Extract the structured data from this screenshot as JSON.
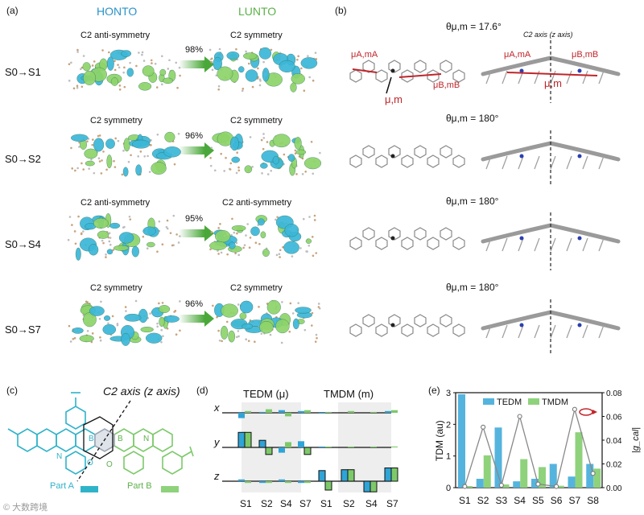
{
  "panel_a": {
    "label": "(a)",
    "header_honto": "HONTO",
    "header_lunto": "LUNTO",
    "rows": [
      {
        "transition": "S0→S1",
        "honto_sym": "C2 anti-symmetry",
        "lunto_sym": "C2 symmetry",
        "percent": "98%"
      },
      {
        "transition": "S0→S2",
        "honto_sym": "C2 symmetry",
        "lunto_sym": "C2 symmetry",
        "percent": "96%"
      },
      {
        "transition": "S0→S4",
        "honto_sym": "C2 anti-symmetry",
        "lunto_sym": "C2 anti-symmetry",
        "percent": "95%"
      },
      {
        "transition": "S0→S7",
        "honto_sym": "C2 symmetry",
        "lunto_sym": "C2 symmetry",
        "percent": "96%"
      }
    ]
  },
  "panel_b": {
    "label": "(b)",
    "axis_label": "C2 axis (z axis)",
    "thetas": [
      "θμ,m = 17.6°",
      "θμ,m = 180°",
      "θμ,m = 180°",
      "θμ,m = 180°"
    ],
    "vec_a": "μA,mA",
    "vec_b": "μB,mB",
    "vec_total": "μ,m"
  },
  "panel_c": {
    "label": "(c)",
    "axis_label": "C2 axis (z axis)",
    "part_a": "Part A",
    "part_b": "Part B",
    "atoms": [
      "N",
      "B",
      "O",
      "B",
      "O",
      "N"
    ],
    "color_a": "#2fb3c9",
    "color_b": "#7dc96a"
  },
  "panel_d": {
    "label": "(d)",
    "title_tedm": "TEDM (μ)",
    "title_tmdm": "TMDM (m)",
    "row_labels": [
      "x",
      "y",
      "z"
    ],
    "x_labels": [
      "S1",
      "S2",
      "S4",
      "S7",
      "S1",
      "S2",
      "S4",
      "S7"
    ],
    "bars": {
      "x": {
        "blue": [
          -0.3,
          0.05,
          0.15,
          0.1,
          -0.05,
          0.0,
          0.0,
          0.1
        ],
        "green": [
          0.1,
          0.2,
          -0.2,
          0.15,
          0.05,
          0.1,
          0.05,
          0.15
        ]
      },
      "y": {
        "blue": [
          0.85,
          0.4,
          -0.3,
          0.35,
          0.05,
          0.0,
          0.0,
          0.0
        ],
        "green": [
          0.85,
          -0.4,
          0.3,
          -0.4,
          0.05,
          0.05,
          0.05,
          0.05
        ]
      },
      "z": {
        "blue": [
          0.1,
          -0.1,
          0.1,
          -0.1,
          0.6,
          0.65,
          -0.6,
          0.75
        ],
        "green": [
          -0.1,
          -0.1,
          -0.1,
          -0.1,
          -0.5,
          0.65,
          -0.6,
          0.75
        ]
      }
    }
  },
  "chart_data": {
    "type": "bar",
    "title": "(e)",
    "categories": [
      "S1",
      "S2",
      "S3",
      "S4",
      "S5",
      "S6",
      "S7",
      "S8"
    ],
    "ylabel": "TDM (au)",
    "y2label": "|g_cal|",
    "ylim": [
      0,
      3
    ],
    "y2lim": [
      0,
      0.08
    ],
    "yticks": [
      "0",
      "1",
      "2",
      "3"
    ],
    "y2ticks": [
      "0.00",
      "0.02",
      "0.04",
      "0.06",
      "0.08"
    ],
    "series": [
      {
        "name": "TEDM",
        "values": [
          2.95,
          0.28,
          1.9,
          0.2,
          0.28,
          0.75,
          0.35,
          0.75
        ],
        "color": "#55b4dd"
      },
      {
        "name": "TMDM",
        "values": [
          0.05,
          1.02,
          0.1,
          0.9,
          0.65,
          0.06,
          1.75,
          0.6
        ],
        "color": "#8fd27c"
      },
      {
        "name": "|g_cal|",
        "axis": "right",
        "values": [
          0.001,
          0.051,
          0.002,
          0.06,
          0.003,
          0.001,
          0.066,
          0.012
        ],
        "color": "#888888"
      }
    ]
  },
  "watermark": "© 大数跨境"
}
